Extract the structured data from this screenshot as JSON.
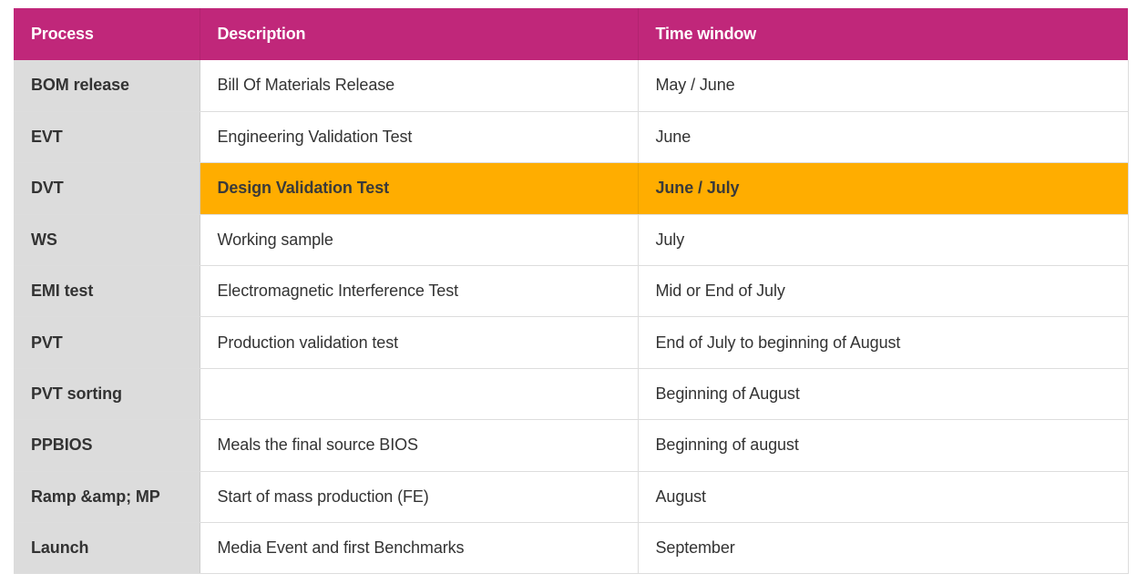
{
  "header": {
    "process": "Process",
    "description": "Description",
    "time_window": "Time window"
  },
  "rows": [
    {
      "process": "BOM release",
      "description": "Bill Of Materials Release",
      "time": "May / June"
    },
    {
      "process": "EVT",
      "description": "Engineering Validation Test",
      "time": "June"
    },
    {
      "process": "DVT",
      "description": "Design Validation Test",
      "time": "June / July",
      "highlight": true
    },
    {
      "process": "WS",
      "description": "Working sample",
      "time": "July"
    },
    {
      "process": "EMI test",
      "description": "Electromagnetic Interference Test",
      "time": "Mid or End of July"
    },
    {
      "process": "PVT",
      "description": "Production validation test",
      "time": "End of July to beginning of August"
    },
    {
      "process": "PVT sorting",
      "description": "",
      "time": "Beginning of August"
    },
    {
      "process": "PPBIOS",
      "description": "Meals the final source BIOS",
      "time": "Beginning of august"
    },
    {
      "process": "Ramp &amp; MP",
      "description": "Start of mass production (FE)",
      "time": "August"
    },
    {
      "process": "Launch",
      "description": "Media Event and first Benchmarks",
      "time": "September"
    }
  ],
  "colors": {
    "header_bg": "#c0277a",
    "highlight_bg": "#ffad00",
    "process_col_bg": "#dcdcdc"
  }
}
